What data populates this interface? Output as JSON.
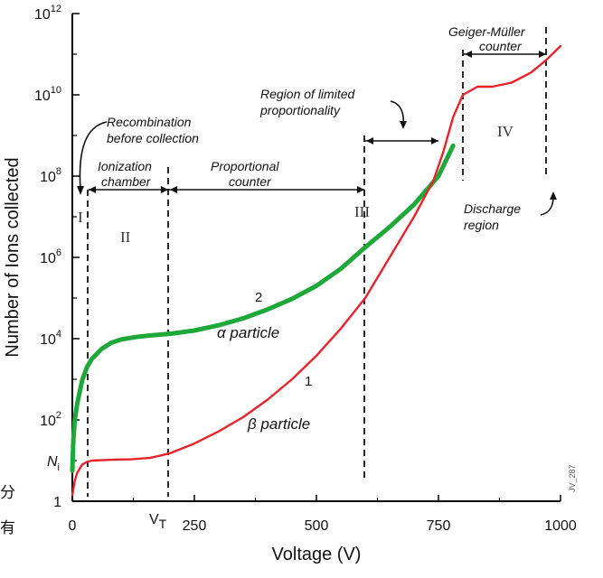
{
  "chart_data": {
    "type": "line",
    "title": "",
    "xlabel": "Voltage (V)",
    "ylabel": "Number of Ions collected",
    "xlim": [
      0,
      1000
    ],
    "ylim_log10": [
      0,
      12
    ],
    "y_scale": "log",
    "xticks": [
      {
        "x": 0,
        "label": "0"
      },
      {
        "x": 250,
        "label": "250"
      },
      {
        "x": 500,
        "label": "500"
      },
      {
        "x": 750,
        "label": "750"
      },
      {
        "x": 1000,
        "label": "1000"
      }
    ],
    "yticks": [
      {
        "exp": 0,
        "base": "1",
        "sup": ""
      },
      {
        "exp": 2,
        "base": "10",
        "sup": "2"
      },
      {
        "exp": 4,
        "base": "10",
        "sup": "4"
      },
      {
        "exp": 6,
        "base": "10",
        "sup": "6"
      },
      {
        "exp": 8,
        "base": "10",
        "sup": "8"
      },
      {
        "exp": 10,
        "base": "10",
        "sup": "10"
      },
      {
        "exp": 12,
        "base": "10",
        "sup": "12"
      }
    ],
    "extra_ytick": {
      "exp": 1.0,
      "base": "N",
      "sub": "i"
    },
    "extra_xtick": {
      "x": 190,
      "base": "V",
      "sub": "T"
    },
    "series": [
      {
        "label_number": "2",
        "label_text": "α particle",
        "color": "#1fa83a",
        "x_log10": [
          [
            0,
            0.75
          ],
          [
            2,
            1.5
          ],
          [
            5,
            2.0
          ],
          [
            10,
            2.4
          ],
          [
            20,
            2.97
          ],
          [
            30,
            3.3
          ],
          [
            40,
            3.5
          ],
          [
            60,
            3.75
          ],
          [
            80,
            3.9
          ],
          [
            100,
            3.98
          ],
          [
            130,
            4.04
          ],
          [
            160,
            4.08
          ],
          [
            200,
            4.12
          ],
          [
            250,
            4.2
          ],
          [
            300,
            4.33
          ],
          [
            350,
            4.5
          ],
          [
            400,
            4.72
          ],
          [
            450,
            4.98
          ],
          [
            500,
            5.3
          ],
          [
            550,
            5.72
          ],
          [
            600,
            6.25
          ],
          [
            650,
            6.75
          ],
          [
            700,
            7.3
          ],
          [
            750,
            8.0
          ],
          [
            780,
            8.75
          ]
        ]
      },
      {
        "label_number": "1",
        "label_text": "β particle",
        "color": "#e8232c",
        "x_log10": [
          [
            0,
            0.15
          ],
          [
            5,
            0.5
          ],
          [
            10,
            0.7
          ],
          [
            20,
            0.9
          ],
          [
            30,
            0.97
          ],
          [
            40,
            1.0
          ],
          [
            80,
            1.02
          ],
          [
            120,
            1.03
          ],
          [
            160,
            1.07
          ],
          [
            200,
            1.18
          ],
          [
            250,
            1.42
          ],
          [
            300,
            1.72
          ],
          [
            350,
            2.07
          ],
          [
            400,
            2.5
          ],
          [
            450,
            3.0
          ],
          [
            500,
            3.58
          ],
          [
            550,
            4.25
          ],
          [
            600,
            5.0
          ],
          [
            650,
            6.0
          ],
          [
            700,
            7.0
          ],
          [
            740,
            7.9
          ],
          [
            760,
            8.6
          ],
          [
            780,
            9.45
          ],
          [
            800,
            10.0
          ],
          [
            830,
            10.2
          ],
          [
            860,
            10.2
          ],
          [
            900,
            10.3
          ],
          [
            940,
            10.55
          ],
          [
            970,
            10.85
          ],
          [
            1000,
            11.2
          ]
        ]
      }
    ],
    "regions": [
      "I",
      "II",
      "III",
      "IV"
    ],
    "annotations": [
      "Recombination before collection",
      "Ionization chamber",
      "Proportional counter",
      "Region of limited proportionality",
      "Geiger-Müller counter",
      "Discharge region"
    ],
    "grid": false,
    "legend": "none"
  },
  "side_text": [
    "分",
    "有"
  ],
  "watermark": "JV_287"
}
